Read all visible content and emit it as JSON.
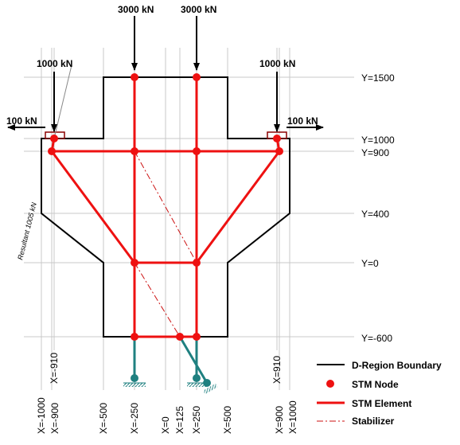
{
  "loads": {
    "top_left": "3000 kN",
    "top_right": "3000 kN",
    "side_left": "1000 kN",
    "side_right": "1000 kN",
    "horiz_left": "100 kN",
    "horiz_right": "100 kN"
  },
  "y_labels": [
    "Y=1500",
    "Y=1000",
    "Y=900",
    "Y=400",
    "Y=0",
    "Y=-600"
  ],
  "x_labels": [
    "X=-1000",
    "X=-900",
    "X=-500",
    "X=-250",
    "X=0",
    "X=125",
    "X=250",
    "X=500",
    "X=900",
    "X=1000"
  ],
  "x_910_left": "X=-910",
  "x_910_right": "X=910",
  "resultant": "Resultant 1005 kN",
  "legend": {
    "boundary": "D-Region Boundary",
    "node": "STM Node",
    "element": "STM Element",
    "stabilizer": "Stabilizer"
  },
  "colors": {
    "stm": "#ee1111",
    "boundary": "#000000",
    "support": "#1f8080"
  }
}
